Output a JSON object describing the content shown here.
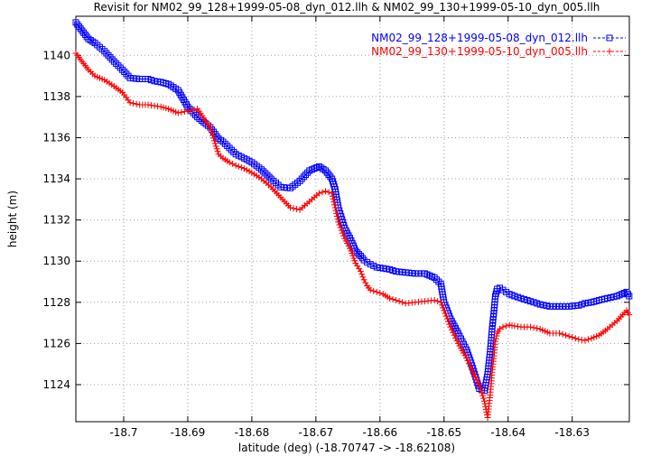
{
  "chart_data": {
    "type": "line",
    "title": "Revisit for NM02_99_128+1999-05-08_dyn_012.llh & NM02_99_130+1999-05-10_dyn_005.llh",
    "xlabel": "latitude (deg) (-18.70747 -> -18.62108)",
    "ylabel": "height (m)",
    "xlim": [
      -18.70747,
      -18.62108
    ],
    "ylim": [
      1122.2,
      1141.9
    ],
    "x_ticks": [
      -18.7,
      -18.69,
      -18.68,
      -18.67,
      -18.66,
      -18.65,
      -18.64,
      -18.63
    ],
    "x_tick_labels": [
      "-18.7",
      "-18.69",
      "-18.68",
      "-18.67",
      "-18.66",
      "-18.65",
      "-18.64",
      "-18.63"
    ],
    "y_ticks": [
      1124,
      1126,
      1128,
      1130,
      1132,
      1134,
      1136,
      1138,
      1140
    ],
    "y_tick_labels": [
      "1124",
      "1126",
      "1128",
      "1130",
      "1132",
      "1134",
      "1136",
      "1138",
      "1140"
    ],
    "grid": true,
    "legend_position": "top-right",
    "series": [
      {
        "name": "NM02_99_128+1999-05-08_dyn_012.llh",
        "color": "#0000ff",
        "marker": "square",
        "x": [
          -18.70747,
          -18.7065,
          -18.7055,
          -18.7045,
          -18.703,
          -18.7015,
          -18.7002,
          -18.699,
          -18.6975,
          -18.6962,
          -18.6952,
          -18.6942,
          -18.693,
          -18.6915,
          -18.69,
          -18.6885,
          -18.6865,
          -18.6852,
          -18.6845,
          -18.6835,
          -18.6825,
          -18.6812,
          -18.68,
          -18.6785,
          -18.677,
          -18.6755,
          -18.674,
          -18.6725,
          -18.671,
          -18.6695,
          -18.6685,
          -18.6675,
          -18.667,
          -18.6665,
          -18.6655,
          -18.6645,
          -18.6638,
          -18.663,
          -18.6625,
          -18.662,
          -18.6615,
          -18.6605,
          -18.6595,
          -18.6585,
          -18.6575,
          -18.656,
          -18.6545,
          -18.653,
          -18.6515,
          -18.6505,
          -18.65,
          -18.649,
          -18.6478,
          -18.6465,
          -18.6455,
          -18.6445,
          -18.6437,
          -18.6432,
          -18.6428,
          -18.6425,
          -18.6422,
          -18.642,
          -18.6417,
          -18.6413,
          -18.6408,
          -18.6403,
          -18.6398,
          -18.639,
          -18.638,
          -18.6365,
          -18.635,
          -18.6335,
          -18.632,
          -18.6305,
          -18.629,
          -18.628,
          -18.627,
          -18.6258,
          -18.6245,
          -18.623,
          -18.6215,
          -18.6211
        ],
        "y": [
          1141.6,
          1141.2,
          1140.8,
          1140.6,
          1140.2,
          1139.7,
          1139.3,
          1138.9,
          1138.85,
          1138.85,
          1138.75,
          1138.7,
          1138.6,
          1138.3,
          1137.5,
          1137.0,
          1136.5,
          1135.95,
          1135.8,
          1135.5,
          1135.2,
          1135.0,
          1134.8,
          1134.45,
          1134.0,
          1133.6,
          1133.55,
          1133.9,
          1134.4,
          1134.6,
          1134.4,
          1134.0,
          1133.5,
          1132.6,
          1131.6,
          1131.0,
          1130.5,
          1130.25,
          1130.05,
          1129.95,
          1129.85,
          1129.7,
          1129.65,
          1129.6,
          1129.5,
          1129.45,
          1129.4,
          1129.4,
          1129.2,
          1128.9,
          1128.0,
          1127.2,
          1126.5,
          1125.7,
          1124.8,
          1123.8,
          1123.7,
          1124.5,
          1125.6,
          1126.7,
          1127.6,
          1128.3,
          1128.65,
          1128.7,
          1128.6,
          1128.5,
          1128.4,
          1128.3,
          1128.2,
          1128.05,
          1127.9,
          1127.8,
          1127.8,
          1127.8,
          1127.85,
          1127.95,
          1128.0,
          1128.1,
          1128.2,
          1128.3,
          1128.5,
          1128.3
        ]
      },
      {
        "name": "NM02_99_130+1999-05-10_dyn_005.llh",
        "color": "#ff0000",
        "marker": "plus",
        "x": [
          -18.70747,
          -18.7065,
          -18.7055,
          -18.7045,
          -18.703,
          -18.7015,
          -18.7002,
          -18.699,
          -18.6975,
          -18.6962,
          -18.6952,
          -18.6942,
          -18.693,
          -18.6915,
          -18.69,
          -18.6885,
          -18.6865,
          -18.6852,
          -18.6845,
          -18.6835,
          -18.6825,
          -18.6812,
          -18.68,
          -18.6785,
          -18.677,
          -18.6755,
          -18.674,
          -18.6725,
          -18.671,
          -18.6695,
          -18.6685,
          -18.6675,
          -18.667,
          -18.6665,
          -18.6655,
          -18.6645,
          -18.6638,
          -18.663,
          -18.6625,
          -18.662,
          -18.6615,
          -18.6605,
          -18.6595,
          -18.6585,
          -18.6575,
          -18.656,
          -18.6545,
          -18.653,
          -18.6515,
          -18.6505,
          -18.65,
          -18.649,
          -18.6478,
          -18.6465,
          -18.6455,
          -18.6445,
          -18.6437,
          -18.6432,
          -18.6428,
          -18.6425,
          -18.6422,
          -18.642,
          -18.6417,
          -18.6413,
          -18.6408,
          -18.6403,
          -18.6398,
          -18.639,
          -18.638,
          -18.6365,
          -18.635,
          -18.6335,
          -18.632,
          -18.6305,
          -18.629,
          -18.628,
          -18.627,
          -18.6258,
          -18.6245,
          -18.623,
          -18.6215,
          -18.6211
        ],
        "y": [
          1140.1,
          1139.7,
          1139.3,
          1139.0,
          1138.8,
          1138.5,
          1138.2,
          1137.7,
          1137.6,
          1137.6,
          1137.55,
          1137.5,
          1137.4,
          1137.2,
          1137.3,
          1137.4,
          1136.5,
          1135.2,
          1135.0,
          1134.8,
          1134.65,
          1134.5,
          1134.3,
          1134.0,
          1133.6,
          1133.1,
          1132.6,
          1132.5,
          1132.9,
          1133.3,
          1133.4,
          1133.3,
          1132.6,
          1131.9,
          1131.1,
          1130.5,
          1129.9,
          1129.5,
          1129.1,
          1128.8,
          1128.6,
          1128.5,
          1128.4,
          1128.2,
          1128.1,
          1127.95,
          1128.0,
          1128.05,
          1128.1,
          1128.0,
          1127.6,
          1126.8,
          1126.0,
          1125.3,
          1124.6,
          1124.0,
          1123.2,
          1122.4,
          1123.5,
          1124.6,
          1125.4,
          1126.1,
          1126.5,
          1126.7,
          1126.8,
          1126.85,
          1126.9,
          1126.85,
          1126.8,
          1126.8,
          1126.7,
          1126.5,
          1126.5,
          1126.35,
          1126.2,
          1126.15,
          1126.25,
          1126.4,
          1126.7,
          1127.1,
          1127.6,
          1127.4
        ]
      }
    ]
  }
}
